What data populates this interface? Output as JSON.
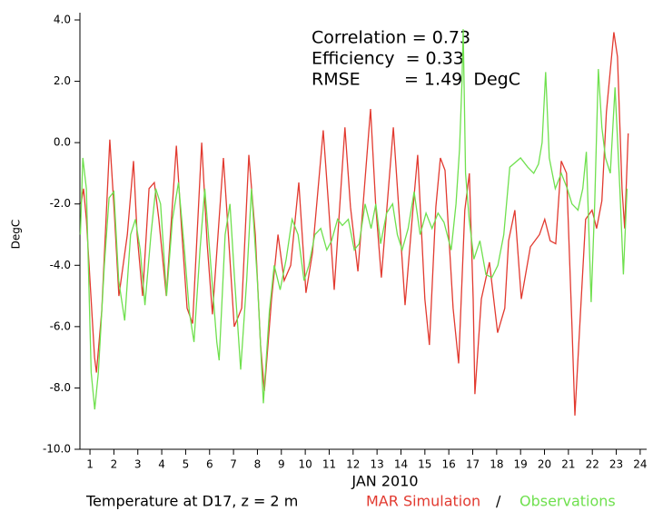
{
  "chart_data": {
    "type": "line",
    "annotations": [
      "Correlation = 0.73",
      "Efficiency  = 0.33",
      "RMSE        = 1.49  DegC"
    ],
    "y_label": "DegC",
    "x_label": "JAN 2010",
    "footer": "Temperature at D17, z = 2 m",
    "separator": "/",
    "xlim": [
      0.58,
      24.27
    ],
    "ylim": [
      -10,
      4
    ],
    "xticks": [
      1,
      2,
      3,
      4,
      5,
      6,
      7,
      8,
      9,
      10,
      11,
      12,
      13,
      14,
      15,
      16,
      17,
      18,
      19,
      20,
      21,
      22,
      23,
      24
    ],
    "yticks": [
      {
        "value": 4,
        "label": "4.0"
      },
      {
        "value": 2,
        "label": "2.0"
      },
      {
        "value": 0,
        "label": "0.0"
      },
      {
        "value": -2,
        "label": "-2.0"
      },
      {
        "value": -4,
        "label": "-4.0"
      },
      {
        "value": -6,
        "label": "-6.0"
      },
      {
        "value": -8,
        "label": "-8.0"
      },
      {
        "value": -10,
        "label": "-10.0"
      }
    ],
    "series": [
      {
        "name": "MAR Simulation",
        "color": "#e23a30",
        "x": [
          0.62,
          0.73,
          0.85,
          1.19,
          1.27,
          1.49,
          1.83,
          2.02,
          2.21,
          2.56,
          2.82,
          2.97,
          3.2,
          3.47,
          3.69,
          3.88,
          4.19,
          4.61,
          4.83,
          5.06,
          5.29,
          5.67,
          5.9,
          6.12,
          6.58,
          6.81,
          7.03,
          7.34,
          7.64,
          7.91,
          8.13,
          8.29,
          8.59,
          8.86,
          9.12,
          9.39,
          9.73,
          10.03,
          10.3,
          10.75,
          10.98,
          11.21,
          11.66,
          11.89,
          12.2,
          12.73,
          12.95,
          13.18,
          13.68,
          13.94,
          14.17,
          14.51,
          14.7,
          15.0,
          15.19,
          15.46,
          15.65,
          15.84,
          16.18,
          16.41,
          16.67,
          16.86,
          17.02,
          17.09,
          17.36,
          17.7,
          18.04,
          18.34,
          18.5,
          18.76,
          19.03,
          19.41,
          19.79,
          20.01,
          20.24,
          20.47,
          20.7,
          20.92,
          21.15,
          21.27,
          21.53,
          21.72,
          21.99,
          22.18,
          22.4,
          22.59,
          22.9,
          23.05,
          23.24,
          23.35,
          23.5
        ],
        "values": [
          -2.0,
          -1.5,
          -2.5,
          -7.0,
          -7.5,
          -5.5,
          0.1,
          -2.3,
          -5.0,
          -3.0,
          -0.6,
          -3.0,
          -5.0,
          -1.5,
          -1.3,
          -2.5,
          -5.0,
          -0.1,
          -2.8,
          -5.4,
          -5.9,
          0.0,
          -3.3,
          -5.6,
          -0.5,
          -3.3,
          -6.0,
          -5.4,
          -0.4,
          -3.0,
          -6.6,
          -8.1,
          -5.1,
          -3.0,
          -4.5,
          -4.0,
          -1.3,
          -4.9,
          -3.6,
          0.4,
          -2.1,
          -4.8,
          0.5,
          -2.1,
          -4.2,
          1.1,
          -2.1,
          -4.4,
          0.5,
          -2.5,
          -5.3,
          -2.1,
          -0.4,
          -5.1,
          -6.6,
          -2.1,
          -0.5,
          -0.9,
          -5.4,
          -7.2,
          -2.2,
          -1.0,
          -5.1,
          -8.2,
          -5.1,
          -3.9,
          -6.2,
          -5.4,
          -3.2,
          -2.2,
          -5.1,
          -3.4,
          -3.0,
          -2.5,
          -3.2,
          -3.3,
          -0.6,
          -1.0,
          -6.0,
          -8.9,
          -5.2,
          -2.5,
          -2.2,
          -2.8,
          -1.9,
          1.0,
          3.6,
          2.8,
          -1.5,
          -2.8,
          0.3
        ]
      },
      {
        "name": "Observations",
        "color": "#6fe04e",
        "x": [
          0.6,
          0.7,
          0.85,
          1.05,
          1.2,
          1.35,
          1.6,
          1.8,
          2.0,
          2.2,
          2.45,
          2.7,
          2.9,
          3.1,
          3.3,
          3.55,
          3.75,
          3.95,
          4.2,
          4.45,
          4.7,
          4.95,
          5.15,
          5.35,
          5.6,
          5.8,
          6.05,
          6.3,
          6.4,
          6.65,
          6.85,
          7.05,
          7.3,
          7.55,
          7.75,
          8.0,
          8.25,
          8.5,
          8.7,
          8.95,
          9.2,
          9.45,
          9.7,
          9.95,
          10.15,
          10.4,
          10.65,
          10.9,
          11.1,
          11.35,
          11.55,
          11.8,
          12.05,
          12.25,
          12.5,
          12.75,
          12.95,
          13.15,
          13.4,
          13.65,
          13.85,
          14.05,
          14.3,
          14.55,
          14.8,
          15.05,
          15.3,
          15.55,
          15.8,
          16.1,
          16.3,
          16.45,
          16.55,
          16.6,
          16.7,
          16.85,
          17.05,
          17.3,
          17.55,
          17.8,
          18.05,
          18.3,
          18.55,
          19.0,
          19.3,
          19.55,
          19.75,
          19.9,
          20.05,
          20.2,
          20.45,
          20.7,
          20.95,
          21.15,
          21.4,
          21.6,
          21.75,
          21.95,
          22.1,
          22.25,
          22.4,
          22.55,
          22.75,
          22.95,
          23.15,
          23.3,
          23.45
        ],
        "values": [
          -3.0,
          -0.5,
          -1.5,
          -7.5,
          -8.7,
          -7.5,
          -4.0,
          -1.8,
          -1.6,
          -4.5,
          -5.8,
          -3.0,
          -2.5,
          -3.5,
          -5.3,
          -3.0,
          -1.5,
          -2.0,
          -5.0,
          -2.5,
          -1.3,
          -3.5,
          -5.5,
          -6.5,
          -3.5,
          -1.5,
          -4.0,
          -6.5,
          -7.1,
          -3.0,
          -2.0,
          -4.5,
          -7.4,
          -4.5,
          -1.5,
          -4.5,
          -8.5,
          -5.5,
          -4.0,
          -4.8,
          -3.8,
          -2.5,
          -3.0,
          -4.5,
          -4.0,
          -3.0,
          -2.8,
          -3.5,
          -3.2,
          -2.5,
          -2.7,
          -2.5,
          -3.5,
          -3.3,
          -2.0,
          -2.8,
          -2.0,
          -3.3,
          -2.3,
          -2.0,
          -3.0,
          -3.5,
          -2.8,
          -1.6,
          -3.0,
          -2.3,
          -2.8,
          -2.3,
          -2.6,
          -3.5,
          -2.0,
          -0.2,
          2.0,
          3.7,
          -1.0,
          -2.5,
          -3.8,
          -3.2,
          -4.3,
          -4.4,
          -4.0,
          -3.0,
          -0.8,
          -0.5,
          -0.8,
          -1.0,
          -0.7,
          0.0,
          2.3,
          -0.5,
          -1.5,
          -1.0,
          -1.5,
          -2.0,
          -2.2,
          -1.5,
          -0.3,
          -5.2,
          -2.0,
          2.4,
          0.5,
          -0.5,
          -1.0,
          1.8,
          -1.5,
          -4.3,
          -1.5
        ]
      }
    ]
  }
}
